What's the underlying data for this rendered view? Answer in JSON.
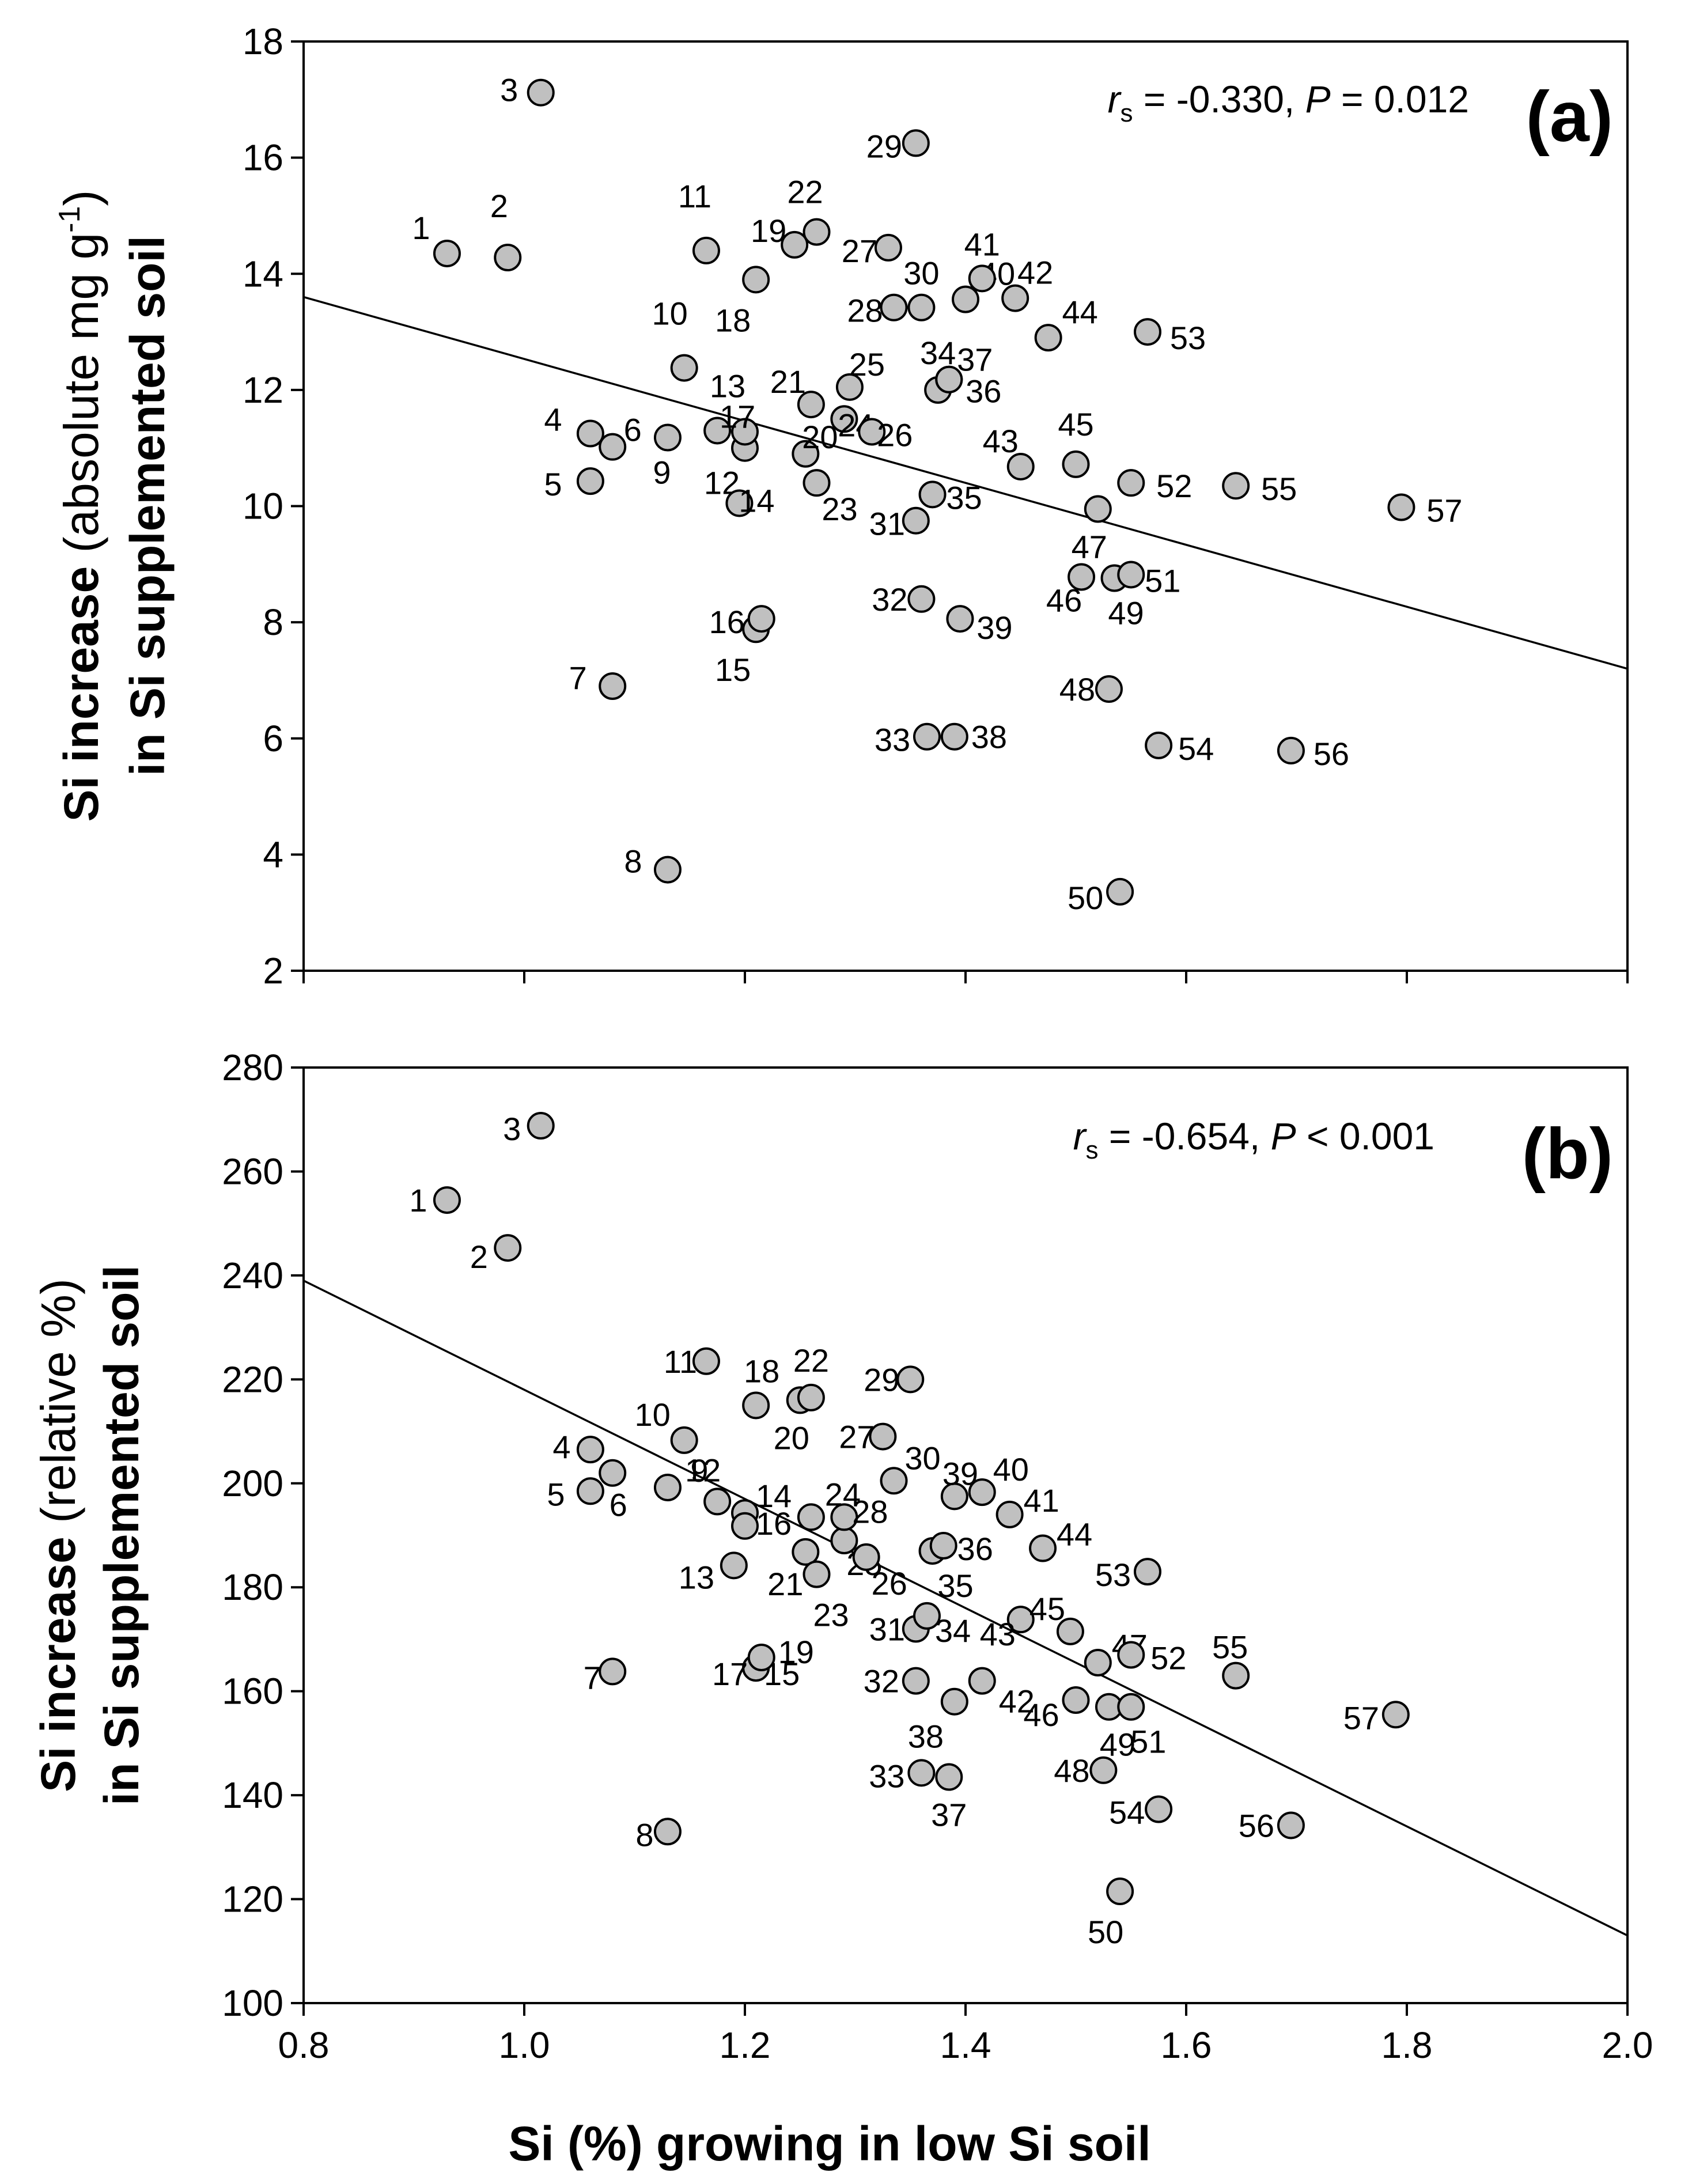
{
  "figure": {
    "xlabel": "Si (%) growing in low Si soil"
  },
  "chart_data": [
    {
      "type": "scatter",
      "panel": "(a)",
      "ylabel_line1_bold": "Si increase",
      "ylabel_line1_normal": " (absolute mg g",
      "ylabel_superscript": "-1",
      "ylabel_line1_close": ")",
      "ylabel_line2": "in Si supplemented soil",
      "xlabel": "Si (%) growing in low Si soil",
      "xlim": [
        0.8,
        2.0
      ],
      "ylim": [
        2,
        18
      ],
      "xticks": [
        "0.8",
        "1.0",
        "1.2",
        "1.4",
        "1.6",
        "1.8",
        "2.0"
      ],
      "yticks": [
        "2",
        "4",
        "6",
        "8",
        "10",
        "12",
        "14",
        "16",
        "18"
      ],
      "stat": {
        "r": "r",
        "sub": "s",
        "rest": " = -0.330, ",
        "p": "P",
        "prest": " = 0.012"
      },
      "fit": {
        "x": [
          0.8,
          2.0
        ],
        "y": [
          13.6,
          7.2
        ]
      },
      "points": [
        {
          "id": "1",
          "x": 0.93,
          "y": 14.35
        },
        {
          "id": "2",
          "x": 0.985,
          "y": 14.28
        },
        {
          "id": "3",
          "x": 1.015,
          "y": 17.12
        },
        {
          "id": "4",
          "x": 1.06,
          "y": 11.25
        },
        {
          "id": "5",
          "x": 1.06,
          "y": 10.43
        },
        {
          "id": "6",
          "x": 1.08,
          "y": 11.02
        },
        {
          "id": "7",
          "x": 1.08,
          "y": 6.9
        },
        {
          "id": "8",
          "x": 1.13,
          "y": 3.74
        },
        {
          "id": "9",
          "x": 1.13,
          "y": 11.18
        },
        {
          "id": "10",
          "x": 1.145,
          "y": 12.38
        },
        {
          "id": "11",
          "x": 1.165,
          "y": 14.4
        },
        {
          "id": "12",
          "x": 1.2,
          "y": 11.0
        },
        {
          "id": "13",
          "x": 1.2,
          "y": 11.28
        },
        {
          "id": "14",
          "x": 1.195,
          "y": 10.05
        },
        {
          "id": "15",
          "x": 1.21,
          "y": 7.88
        },
        {
          "id": "16",
          "x": 1.215,
          "y": 8.06
        },
        {
          "id": "17",
          "x": 1.175,
          "y": 11.3
        },
        {
          "id": "18",
          "x": 1.21,
          "y": 13.9
        },
        {
          "id": "19",
          "x": 1.245,
          "y": 14.5
        },
        {
          "id": "20",
          "x": 1.255,
          "y": 10.9
        },
        {
          "id": "21",
          "x": 1.26,
          "y": 11.75
        },
        {
          "id": "22",
          "x": 1.265,
          "y": 14.72
        },
        {
          "id": "23",
          "x": 1.265,
          "y": 10.4
        },
        {
          "id": "24",
          "x": 1.29,
          "y": 11.5
        },
        {
          "id": "25",
          "x": 1.295,
          "y": 12.05
        },
        {
          "id": "26",
          "x": 1.315,
          "y": 11.28
        },
        {
          "id": "27",
          "x": 1.33,
          "y": 14.45
        },
        {
          "id": "28",
          "x": 1.335,
          "y": 13.42
        },
        {
          "id": "29",
          "x": 1.355,
          "y": 16.25
        },
        {
          "id": "30",
          "x": 1.36,
          "y": 13.42
        },
        {
          "id": "31",
          "x": 1.355,
          "y": 9.75
        },
        {
          "id": "32",
          "x": 1.36,
          "y": 8.4
        },
        {
          "id": "33",
          "x": 1.365,
          "y": 6.03
        },
        {
          "id": "34",
          "x": 1.375,
          "y": 12.0
        },
        {
          "id": "35",
          "x": 1.37,
          "y": 10.2
        },
        {
          "id": "36",
          "x": 1.385,
          "y": 12.18
        },
        {
          "id": "37",
          "x": 1.385,
          "y": 12.18
        },
        {
          "id": "38",
          "x": 1.39,
          "y": 6.03
        },
        {
          "id": "39",
          "x": 1.395,
          "y": 8.06
        },
        {
          "id": "40",
          "x": 1.4,
          "y": 13.56
        },
        {
          "id": "41",
          "x": 1.415,
          "y": 13.92
        },
        {
          "id": "42",
          "x": 1.445,
          "y": 13.58
        },
        {
          "id": "43",
          "x": 1.45,
          "y": 10.68
        },
        {
          "id": "44",
          "x": 1.475,
          "y": 12.9
        },
        {
          "id": "45",
          "x": 1.5,
          "y": 10.72
        },
        {
          "id": "46",
          "x": 1.505,
          "y": 8.78
        },
        {
          "id": "47",
          "x": 1.52,
          "y": 9.95
        },
        {
          "id": "48",
          "x": 1.53,
          "y": 6.85
        },
        {
          "id": "49",
          "x": 1.535,
          "y": 8.76
        },
        {
          "id": "50",
          "x": 1.54,
          "y": 3.36
        },
        {
          "id": "51",
          "x": 1.55,
          "y": 8.82
        },
        {
          "id": "52",
          "x": 1.55,
          "y": 10.4
        },
        {
          "id": "53",
          "x": 1.565,
          "y": 13.0
        },
        {
          "id": "54",
          "x": 1.575,
          "y": 5.88
        },
        {
          "id": "55",
          "x": 1.645,
          "y": 10.35
        },
        {
          "id": "56",
          "x": 1.695,
          "y": 5.79
        },
        {
          "id": "57",
          "x": 1.795,
          "y": 9.98
        }
      ]
    },
    {
      "type": "scatter",
      "panel": "(b)",
      "ylabel_line1_bold": "Si increase",
      "ylabel_line1_normal": " (relative %)",
      "ylabel_line2": "in Si supplemented soil",
      "xlabel": "Si (%) growing in low Si soil",
      "xlim": [
        0.8,
        2.0
      ],
      "ylim": [
        100,
        280
      ],
      "xticks": [
        "0.8",
        "1.0",
        "1.2",
        "1.4",
        "1.6",
        "1.8",
        "2.0"
      ],
      "yticks": [
        "100",
        "120",
        "140",
        "160",
        "180",
        "200",
        "220",
        "240",
        "260",
        "280"
      ],
      "stat": {
        "r": "r",
        "sub": "s",
        "rest": " = -0.654, ",
        "p": "P",
        "prest": " < 0.001"
      },
      "fit": {
        "x": [
          0.8,
          2.0
        ],
        "y": [
          239,
          113
        ]
      },
      "points": [
        {
          "id": "1",
          "x": 0.93,
          "y": 254.5
        },
        {
          "id": "2",
          "x": 0.985,
          "y": 245.3
        },
        {
          "id": "3",
          "x": 1.015,
          "y": 268.8
        },
        {
          "id": "4",
          "x": 1.06,
          "y": 206.5
        },
        {
          "id": "5",
          "x": 1.06,
          "y": 198.5
        },
        {
          "id": "6",
          "x": 1.08,
          "y": 202.0
        },
        {
          "id": "7",
          "x": 1.08,
          "y": 163.8
        },
        {
          "id": "8",
          "x": 1.13,
          "y": 133.0
        },
        {
          "id": "9",
          "x": 1.13,
          "y": 199.2
        },
        {
          "id": "10",
          "x": 1.145,
          "y": 208.3
        },
        {
          "id": "11",
          "x": 1.165,
          "y": 223.5
        },
        {
          "id": "12",
          "x": 1.175,
          "y": 196.5
        },
        {
          "id": "13",
          "x": 1.19,
          "y": 184.2
        },
        {
          "id": "14",
          "x": 1.2,
          "y": 194.3
        },
        {
          "id": "15",
          "x": 1.21,
          "y": 164.5
        },
        {
          "id": "16",
          "x": 1.2,
          "y": 191.8
        },
        {
          "id": "17",
          "x": 1.21,
          "y": 164.5
        },
        {
          "id": "18",
          "x": 1.21,
          "y": 215.0
        },
        {
          "id": "19",
          "x": 1.215,
          "y": 166.5
        },
        {
          "id": "20",
          "x": 1.25,
          "y": 216.0
        },
        {
          "id": "21",
          "x": 1.255,
          "y": 186.8
        },
        {
          "id": "22",
          "x": 1.26,
          "y": 216.5
        },
        {
          "id": "23",
          "x": 1.265,
          "y": 182.5
        },
        {
          "id": "24",
          "x": 1.26,
          "y": 193.5
        },
        {
          "id": "25",
          "x": 1.29,
          "y": 189.0
        },
        {
          "id": "26",
          "x": 1.31,
          "y": 185.8
        },
        {
          "id": "27",
          "x": 1.325,
          "y": 209.0
        },
        {
          "id": "28",
          "x": 1.29,
          "y": 193.5
        },
        {
          "id": "29",
          "x": 1.35,
          "y": 220.0
        },
        {
          "id": "30",
          "x": 1.335,
          "y": 200.5
        },
        {
          "id": "31",
          "x": 1.355,
          "y": 172.0
        },
        {
          "id": "32",
          "x": 1.355,
          "y": 162.0
        },
        {
          "id": "33",
          "x": 1.36,
          "y": 144.3
        },
        {
          "id": "34",
          "x": 1.365,
          "y": 174.5
        },
        {
          "id": "35",
          "x": 1.37,
          "y": 187.0
        },
        {
          "id": "36",
          "x": 1.38,
          "y": 188.0
        },
        {
          "id": "37",
          "x": 1.385,
          "y": 143.5
        },
        {
          "id": "38",
          "x": 1.39,
          "y": 158.0
        },
        {
          "id": "39",
          "x": 1.39,
          "y": 197.5
        },
        {
          "id": "40",
          "x": 1.415,
          "y": 198.3
        },
        {
          "id": "41",
          "x": 1.44,
          "y": 194.0
        },
        {
          "id": "42",
          "x": 1.415,
          "y": 162.0
        },
        {
          "id": "43",
          "x": 1.45,
          "y": 173.8
        },
        {
          "id": "44",
          "x": 1.47,
          "y": 187.5
        },
        {
          "id": "45",
          "x": 1.495,
          "y": 171.5
        },
        {
          "id": "46",
          "x": 1.5,
          "y": 158.3
        },
        {
          "id": "47",
          "x": 1.52,
          "y": 165.5
        },
        {
          "id": "48",
          "x": 1.525,
          "y": 144.8
        },
        {
          "id": "49",
          "x": 1.53,
          "y": 157.0
        },
        {
          "id": "50",
          "x": 1.54,
          "y": 121.5
        },
        {
          "id": "51",
          "x": 1.55,
          "y": 157.0
        },
        {
          "id": "52",
          "x": 1.55,
          "y": 167.0
        },
        {
          "id": "53",
          "x": 1.565,
          "y": 183.0
        },
        {
          "id": "54",
          "x": 1.575,
          "y": 137.3
        },
        {
          "id": "55",
          "x": 1.645,
          "y": 163.0
        },
        {
          "id": "56",
          "x": 1.695,
          "y": 134.2
        },
        {
          "id": "57",
          "x": 1.79,
          "y": 155.5
        }
      ]
    }
  ]
}
